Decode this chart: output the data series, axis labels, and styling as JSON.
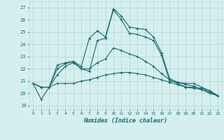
{
  "xlabel": "Humidex (Indice chaleur)",
  "background_color": "#d5efef",
  "grid_color": "#b8d8d8",
  "line_color": "#1a6b6b",
  "xlim": [
    -0.5,
    23.5
  ],
  "ylim": [
    18.7,
    27.5
  ],
  "yticks": [
    19,
    20,
    21,
    22,
    23,
    24,
    25,
    26,
    27
  ],
  "xticks": [
    0,
    1,
    2,
    3,
    4,
    5,
    6,
    7,
    8,
    9,
    10,
    11,
    12,
    13,
    14,
    15,
    16,
    17,
    18,
    19,
    20,
    21,
    22,
    23
  ],
  "series": [
    [
      20.8,
      19.5,
      20.5,
      22.3,
      22.5,
      22.6,
      22.2,
      24.5,
      25.1,
      24.6,
      26.9,
      26.3,
      25.4,
      25.3,
      25.2,
      24.6,
      23.3,
      21.2,
      20.9,
      20.8,
      20.8,
      20.5,
      20.2,
      19.8
    ],
    [
      20.8,
      20.5,
      20.5,
      22.0,
      22.4,
      22.6,
      22.0,
      21.8,
      24.3,
      24.5,
      26.8,
      26.0,
      24.9,
      24.8,
      24.6,
      24.3,
      23.1,
      21.0,
      20.9,
      20.7,
      20.6,
      20.3,
      20.0,
      19.8
    ],
    [
      20.8,
      20.5,
      20.5,
      21.5,
      22.2,
      22.5,
      22.0,
      22.0,
      22.5,
      22.8,
      23.7,
      23.5,
      23.2,
      23.0,
      22.6,
      22.2,
      21.6,
      21.1,
      20.8,
      20.5,
      20.5,
      20.4,
      20.2,
      19.8
    ],
    [
      20.8,
      20.5,
      20.5,
      20.8,
      20.8,
      20.8,
      21.0,
      21.1,
      21.3,
      21.5,
      21.6,
      21.7,
      21.7,
      21.6,
      21.5,
      21.3,
      21.1,
      20.9,
      20.7,
      20.5,
      20.4,
      20.3,
      20.1,
      19.8
    ]
  ]
}
